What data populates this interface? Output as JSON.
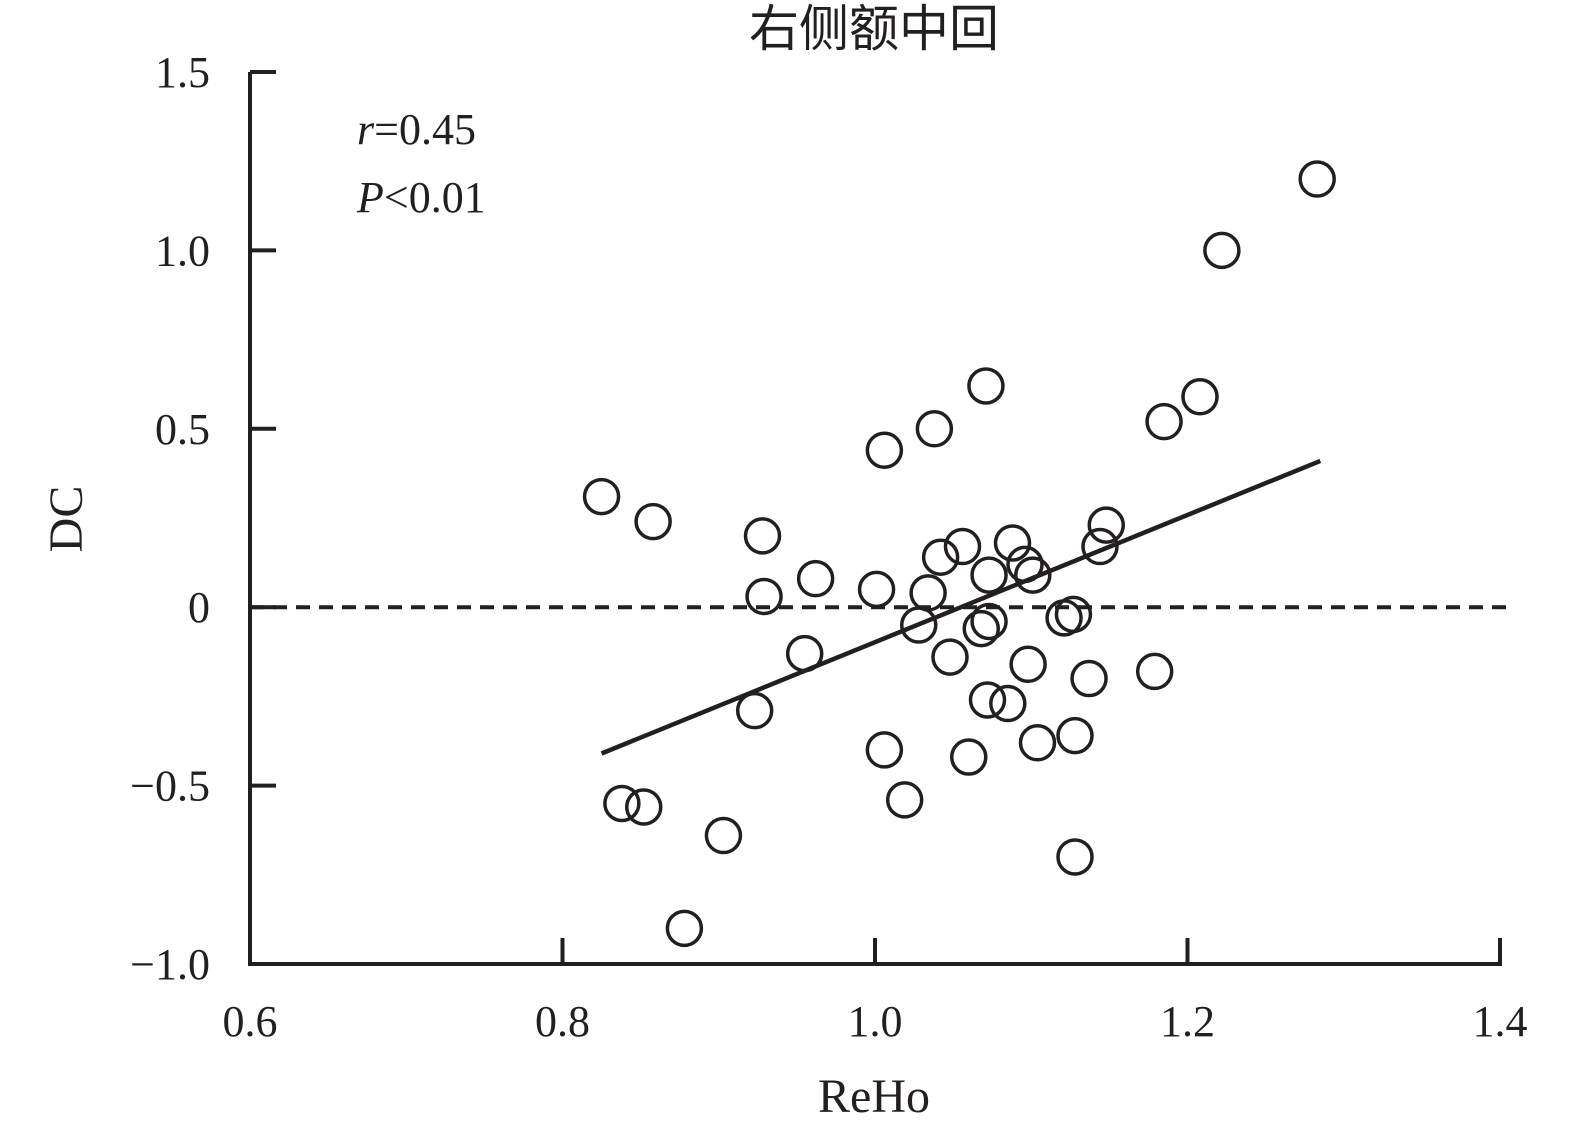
{
  "chart_data": {
    "type": "scatter",
    "title": "右侧额中回",
    "xlabel": "ReHo",
    "ylabel": "DC",
    "xlim": [
      0.6,
      1.4
    ],
    "ylim": [
      -1.0,
      1.5
    ],
    "xticks": [
      "0.6",
      "0.8",
      "1.0",
      "1.2",
      "1.4"
    ],
    "yticks": [
      "−1.0",
      "−0.5",
      "0",
      "0.5",
      "1.0",
      "1.5"
    ],
    "annotations": {
      "r_label": "r",
      "r_value": "=0.45",
      "p_label": "P",
      "p_value": "<0.01"
    },
    "reference_line_y": 0,
    "fit_line": {
      "x": [
        0.825,
        1.285
      ],
      "y": [
        -0.41,
        0.41
      ]
    },
    "grid": false,
    "marker": "open-circle",
    "color": "#231f20",
    "points": [
      {
        "x": 0.825,
        "y": 0.31
      },
      {
        "x": 0.858,
        "y": 0.24
      },
      {
        "x": 0.838,
        "y": -0.55
      },
      {
        "x": 0.852,
        "y": -0.56
      },
      {
        "x": 0.878,
        "y": -0.9
      },
      {
        "x": 0.903,
        "y": -0.64
      },
      {
        "x": 0.923,
        "y": -0.29
      },
      {
        "x": 0.928,
        "y": 0.2
      },
      {
        "x": 0.929,
        "y": 0.03
      },
      {
        "x": 0.955,
        "y": -0.13
      },
      {
        "x": 0.962,
        "y": 0.08
      },
      {
        "x": 1.001,
        "y": 0.05
      },
      {
        "x": 1.006,
        "y": 0.44
      },
      {
        "x": 1.006,
        "y": -0.4
      },
      {
        "x": 1.019,
        "y": -0.54
      },
      {
        "x": 1.028,
        "y": -0.05
      },
      {
        "x": 1.034,
        "y": 0.04
      },
      {
        "x": 1.038,
        "y": 0.5
      },
      {
        "x": 1.042,
        "y": 0.14
      },
      {
        "x": 1.048,
        "y": -0.14
      },
      {
        "x": 1.056,
        "y": 0.17
      },
      {
        "x": 1.06,
        "y": -0.42
      },
      {
        "x": 1.068,
        "y": -0.06
      },
      {
        "x": 1.071,
        "y": 0.62
      },
      {
        "x": 1.073,
        "y": -0.04
      },
      {
        "x": 1.072,
        "y": -0.26
      },
      {
        "x": 1.073,
        "y": 0.09
      },
      {
        "x": 1.085,
        "y": -0.27
      },
      {
        "x": 1.088,
        "y": 0.18
      },
      {
        "x": 1.096,
        "y": 0.12
      },
      {
        "x": 1.098,
        "y": -0.16
      },
      {
        "x": 1.101,
        "y": 0.09
      },
      {
        "x": 1.104,
        "y": -0.38
      },
      {
        "x": 1.121,
        "y": -0.03
      },
      {
        "x": 1.127,
        "y": -0.02
      },
      {
        "x": 1.128,
        "y": -0.36
      },
      {
        "x": 1.128,
        "y": -0.7
      },
      {
        "x": 1.137,
        "y": -0.2
      },
      {
        "x": 1.144,
        "y": 0.17
      },
      {
        "x": 1.148,
        "y": 0.23
      },
      {
        "x": 1.179,
        "y": -0.18
      },
      {
        "x": 1.185,
        "y": 0.52
      },
      {
        "x": 1.208,
        "y": 0.59
      },
      {
        "x": 1.222,
        "y": 1.0
      },
      {
        "x": 1.283,
        "y": 1.2
      }
    ]
  }
}
